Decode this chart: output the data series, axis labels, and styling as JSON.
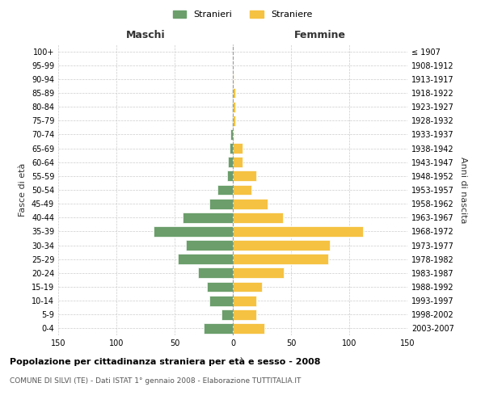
{
  "age_groups": [
    "0-4",
    "5-9",
    "10-14",
    "15-19",
    "20-24",
    "25-29",
    "30-34",
    "35-39",
    "40-44",
    "45-49",
    "50-54",
    "55-59",
    "60-64",
    "65-69",
    "70-74",
    "75-79",
    "80-84",
    "85-89",
    "90-94",
    "95-99",
    "100+"
  ],
  "birth_years": [
    "2003-2007",
    "1998-2002",
    "1993-1997",
    "1988-1992",
    "1983-1987",
    "1978-1982",
    "1973-1977",
    "1968-1972",
    "1963-1967",
    "1958-1962",
    "1953-1957",
    "1948-1952",
    "1943-1947",
    "1938-1942",
    "1933-1937",
    "1928-1932",
    "1923-1927",
    "1918-1922",
    "1913-1917",
    "1908-1912",
    "≤ 1907"
  ],
  "maschi": [
    25,
    10,
    20,
    22,
    30,
    47,
    40,
    68,
    43,
    20,
    13,
    5,
    4,
    3,
    2,
    1,
    1,
    1,
    0,
    0,
    0
  ],
  "femmine": [
    27,
    20,
    20,
    25,
    44,
    82,
    83,
    112,
    43,
    30,
    16,
    20,
    8,
    8,
    1,
    2,
    2,
    2,
    1,
    0,
    0
  ],
  "color_maschi": "#6b9e6b",
  "color_femmine": "#f5c242",
  "title": "Popolazione per cittadinanza straniera per età e sesso - 2008",
  "subtitle": "COMUNE DI SILVI (TE) - Dati ISTAT 1° gennaio 2008 - Elaborazione TUTTITALIA.IT",
  "xlabel_left": "Maschi",
  "xlabel_right": "Femmine",
  "ylabel_left": "Fasce di età",
  "ylabel_right": "Anni di nascita",
  "legend_maschi": "Stranieri",
  "legend_femmine": "Straniere",
  "xlim": 150,
  "background_color": "#ffffff",
  "grid_color": "#cccccc"
}
